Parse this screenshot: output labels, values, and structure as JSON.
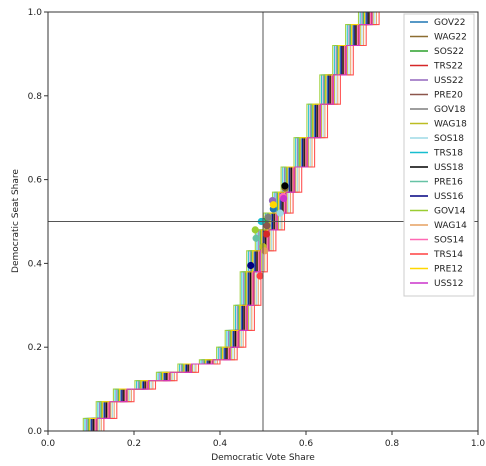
{
  "chart_data": {
    "type": "line",
    "xlabel": "Democratic Vote Share",
    "ylabel": "Democratic Seat Share",
    "xlim": [
      0.0,
      1.0
    ],
    "ylim": [
      0.0,
      1.0
    ],
    "xticks": [
      "0.0",
      "0.2",
      "0.4",
      "0.6",
      "0.8",
      "1.0"
    ],
    "yticks": [
      "0.0",
      "0.2",
      "0.4",
      "0.6",
      "0.8",
      "1.0"
    ],
    "reference_lines": {
      "x": 0.5,
      "y": 0.5
    },
    "grid": false,
    "legend_position": "upper right",
    "series": [
      {
        "name": "GOV22",
        "color": "#1f77b4",
        "offset": 0.0,
        "marker_y": 0.53
      },
      {
        "name": "WAG22",
        "color": "#8c6d31",
        "offset": 0.008,
        "marker_y": 0.58
      },
      {
        "name": "SOS22",
        "color": "#2ca02c",
        "offset": -0.006,
        "marker_y": 0.5
      },
      {
        "name": "TRS22",
        "color": "#d62728",
        "offset": 0.012,
        "marker_y": 0.47
      },
      {
        "name": "USS22",
        "color": "#9467bd",
        "offset": -0.01,
        "marker_y": 0.55
      },
      {
        "name": "PRE20",
        "color": "#8c564b",
        "offset": 0.004,
        "marker_y": 0.49
      },
      {
        "name": "GOV18",
        "color": "#7f7f7f",
        "offset": -0.003,
        "marker_y": 0.51
      },
      {
        "name": "WAG18",
        "color": "#bcbd22",
        "offset": 0.016,
        "marker_y": 0.44
      },
      {
        "name": "SOS18",
        "color": "#9edae5",
        "offset": 0.02,
        "marker_y": 0.52
      },
      {
        "name": "TRS18",
        "color": "#17becf",
        "offset": -0.014,
        "marker_y": 0.5
      },
      {
        "name": "USS18",
        "color": "#000000",
        "offset": 0.006,
        "marker_y": 0.585
      },
      {
        "name": "PRE16",
        "color": "#66c2a5",
        "offset": -0.008,
        "marker_y": 0.46
      },
      {
        "name": "USS16",
        "color": "#000080",
        "offset": 0.002,
        "marker_y": 0.395
      },
      {
        "name": "GOV14",
        "color": "#9acd32",
        "offset": -0.018,
        "marker_y": 0.48
      },
      {
        "name": "WAG14",
        "color": "#e6a060",
        "offset": 0.024,
        "marker_y": 0.43
      },
      {
        "name": "SOS14",
        "color": "#ff69b4",
        "offset": 0.01,
        "marker_y": 0.56
      },
      {
        "name": "TRS14",
        "color": "#ff4040",
        "offset": 0.03,
        "marker_y": 0.37
      },
      {
        "name": "PRE12",
        "color": "#ffd700",
        "offset": -0.004,
        "marker_y": 0.54
      },
      {
        "name": "USS12",
        "color": "#cc33cc",
        "offset": 0.014,
        "marker_y": 0.555
      }
    ],
    "base_curve": [
      [
        0.07,
        0.0
      ],
      [
        0.1,
        0.03
      ],
      [
        0.13,
        0.07
      ],
      [
        0.17,
        0.1
      ],
      [
        0.22,
        0.12
      ],
      [
        0.27,
        0.14
      ],
      [
        0.32,
        0.16
      ],
      [
        0.37,
        0.17
      ],
      [
        0.41,
        0.2
      ],
      [
        0.43,
        0.24
      ],
      [
        0.45,
        0.3
      ],
      [
        0.465,
        0.38
      ],
      [
        0.48,
        0.43
      ],
      [
        0.5,
        0.48
      ],
      [
        0.52,
        0.52
      ],
      [
        0.54,
        0.57
      ],
      [
        0.56,
        0.63
      ],
      [
        0.59,
        0.7
      ],
      [
        0.62,
        0.78
      ],
      [
        0.65,
        0.85
      ],
      [
        0.68,
        0.92
      ],
      [
        0.71,
        0.97
      ],
      [
        0.74,
        1.0
      ]
    ]
  }
}
